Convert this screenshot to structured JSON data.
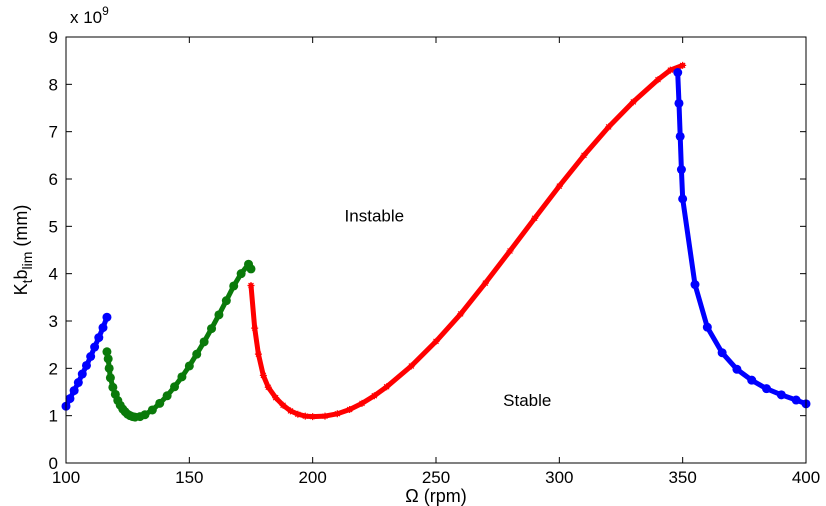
{
  "chart_data": {
    "type": "scatter",
    "title": "",
    "xlabel": "Ω (rpm)",
    "ylabel_main": "K",
    "ylabel_sub1": "t",
    "ylabel_mid": "b",
    "ylabel_sub2": "lim",
    "ylabel_unit": " (mm)",
    "exponent_label_prefix": "x 10",
    "exponent_label_power": "9",
    "xlim": [
      100,
      400
    ],
    "ylim": [
      0,
      9
    ],
    "y_scale_factor": 1000000000,
    "xticks": [
      100,
      150,
      200,
      250,
      300,
      350,
      400
    ],
    "yticks": [
      0,
      1,
      2,
      3,
      4,
      5,
      6,
      7,
      8,
      9
    ],
    "grid": false,
    "annotations": [
      {
        "text": "Instable",
        "x": 225,
        "y": 5.1
      },
      {
        "text": "Stable",
        "x": 287,
        "y": 1.2
      }
    ],
    "series": [
      {
        "color": "#0000ff",
        "marker": "dot",
        "x": [
          100,
          101.6,
          103.3,
          105,
          106.6,
          108.3,
          110,
          111.6,
          113.3,
          115,
          116.6
        ],
        "y": [
          1.2,
          1.36,
          1.53,
          1.7,
          1.88,
          2.06,
          2.25,
          2.45,
          2.65,
          2.86,
          3.08
        ]
      },
      {
        "color": "#0a7a0a",
        "marker": "dot",
        "x": [
          116.6,
          117.1,
          117.5,
          118,
          119,
          120,
          121,
          122,
          123,
          124,
          125,
          126,
          127,
          128,
          130,
          132,
          135,
          138,
          141,
          144,
          147,
          150,
          153,
          156,
          159,
          162,
          165,
          168,
          171,
          174,
          175
        ],
        "y": [
          2.35,
          2.2,
          2.0,
          1.8,
          1.6,
          1.45,
          1.32,
          1.22,
          1.14,
          1.08,
          1.03,
          1.0,
          0.98,
          0.97,
          0.98,
          1.02,
          1.12,
          1.26,
          1.42,
          1.61,
          1.82,
          2.05,
          2.3,
          2.56,
          2.84,
          3.13,
          3.43,
          3.74,
          4.0,
          4.2,
          4.1
        ]
      },
      {
        "color": "#ff0000",
        "marker": "star",
        "x": [
          175,
          176.5,
          178,
          180,
          182,
          185,
          188,
          191,
          194,
          197,
          200,
          205,
          210,
          215,
          220,
          225,
          230,
          240,
          250,
          260,
          270,
          280,
          290,
          300,
          310,
          320,
          330,
          340,
          345,
          350
        ],
        "y": [
          3.75,
          2.85,
          2.3,
          1.85,
          1.6,
          1.38,
          1.22,
          1.1,
          1.03,
          0.99,
          0.98,
          0.99,
          1.04,
          1.13,
          1.26,
          1.42,
          1.61,
          2.05,
          2.57,
          3.15,
          3.8,
          4.48,
          5.17,
          5.85,
          6.5,
          7.1,
          7.63,
          8.1,
          8.3,
          8.4
        ]
      },
      {
        "color": "#0000ff",
        "marker": "dot",
        "x": [
          348,
          348.5,
          349,
          349.5,
          350,
          355,
          360,
          366,
          372,
          378,
          384,
          390,
          396,
          400
        ],
        "y": [
          8.25,
          7.6,
          6.9,
          6.2,
          5.58,
          3.77,
          2.87,
          2.33,
          1.98,
          1.75,
          1.57,
          1.44,
          1.33,
          1.25
        ]
      }
    ]
  }
}
